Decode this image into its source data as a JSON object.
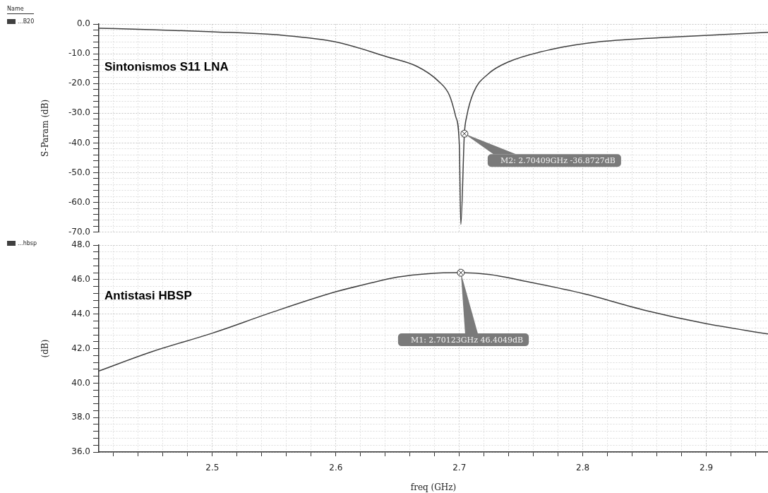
{
  "chart_data": [
    {
      "type": "line",
      "title": "Sintonismos S11 LNA",
      "ylabel": "S-Param (dB)",
      "legend_title": "Name",
      "legend": "left",
      "grid": true,
      "marker": "none",
      "line_style": "solid",
      "tick_labels": "y",
      "series": [
        {
          "name": "...B20",
          "color": "#404040",
          "x": [
            2.408,
            2.45,
            2.5,
            2.557,
            2.601,
            2.641,
            2.666,
            2.683,
            2.692,
            2.697,
            2.7,
            2.7012,
            2.70409,
            2.706,
            2.7115,
            2.723,
            2.74,
            2.775,
            2.815,
            2.872,
            2.95
          ],
          "values": [
            -1.4,
            -1.9,
            -2.6,
            -3.8,
            -6.1,
            -11,
            -14.3,
            -19.2,
            -24,
            -31,
            -40.6,
            -67.4,
            -36.8727,
            -31,
            -23,
            -16.9,
            -12.7,
            -8.5,
            -5.9,
            -4.4,
            -2.8
          ]
        }
      ],
      "annotations": [
        {
          "text": "M2: 2.70409GHz -36.8727dB",
          "x": 2.70409,
          "y": -36.8727
        }
      ],
      "xlim": [
        2.408,
        2.95
      ],
      "ylim": [
        -70,
        0
      ],
      "xticks": [
        {
          "value": 2.42,
          "label": null
        },
        {
          "value": 2.44,
          "label": null
        },
        {
          "value": 2.46,
          "label": null
        },
        {
          "value": 2.48,
          "label": null
        },
        2.5,
        {
          "value": 2.52,
          "label": null
        },
        {
          "value": 2.54,
          "label": null
        },
        {
          "value": 2.56,
          "label": null
        },
        {
          "value": 2.58,
          "label": null
        },
        2.6,
        {
          "value": 2.62,
          "label": null
        },
        {
          "value": 2.64,
          "label": null
        },
        {
          "value": 2.66,
          "label": null
        },
        {
          "value": 2.68,
          "label": null
        },
        2.7,
        {
          "value": 2.72,
          "label": null
        },
        {
          "value": 2.74,
          "label": null
        },
        {
          "value": 2.76,
          "label": null
        },
        {
          "value": 2.78,
          "label": null
        },
        2.8,
        {
          "value": 2.82,
          "label": null
        },
        {
          "value": 2.84,
          "label": null
        },
        {
          "value": 2.86,
          "label": null
        },
        {
          "value": 2.88,
          "label": null
        },
        2.9,
        {
          "value": 2.92,
          "label": null
        },
        {
          "value": 2.94,
          "label": null
        }
      ],
      "yticks": [
        {
          "value": -70,
          "label": "-70.0"
        },
        {
          "value": -68,
          "label": null
        },
        {
          "value": -66,
          "label": null
        },
        {
          "value": -64,
          "label": null
        },
        {
          "value": -62,
          "label": null
        },
        {
          "value": -60,
          "label": "-60.0"
        },
        {
          "value": -58,
          "label": null
        },
        {
          "value": -56,
          "label": null
        },
        {
          "value": -54,
          "label": null
        },
        {
          "value": -52,
          "label": null
        },
        {
          "value": -50,
          "label": "-50.0"
        },
        {
          "value": -48,
          "label": null
        },
        {
          "value": -46,
          "label": null
        },
        {
          "value": -44,
          "label": null
        },
        {
          "value": -42,
          "label": null
        },
        {
          "value": -40,
          "label": "-40.0"
        },
        {
          "value": -38,
          "label": null
        },
        {
          "value": -36,
          "label": null
        },
        {
          "value": -34,
          "label": null
        },
        {
          "value": -32,
          "label": null
        },
        {
          "value": -30,
          "label": "-30.0"
        },
        {
          "value": -28,
          "label": null
        },
        {
          "value": -26,
          "label": null
        },
        {
          "value": -24,
          "label": null
        },
        {
          "value": -22,
          "label": null
        },
        {
          "value": -20,
          "label": "-20.0"
        },
        {
          "value": -18,
          "label": null
        },
        {
          "value": -16,
          "label": null
        },
        {
          "value": -14,
          "label": null
        },
        {
          "value": -12,
          "label": null
        },
        {
          "value": -10,
          "label": "-10.0"
        },
        {
          "value": -8,
          "label": null
        },
        {
          "value": -6,
          "label": null
        },
        {
          "value": -4,
          "label": null
        },
        {
          "value": -2,
          "label": null
        },
        {
          "value": 0,
          "label": "0.0"
        }
      ]
    },
    {
      "type": "line",
      "title": "Antistasi HBSP",
      "xlabel": "freq (GHz)",
      "ylabel": "(dB)",
      "legend": "left",
      "grid": true,
      "marker": "none",
      "line_style": "solid",
      "series": [
        {
          "name": "...hbsp",
          "color": "#404040",
          "x": [
            2.408,
            2.45,
            2.5,
            2.55,
            2.6,
            2.625,
            2.65,
            2.675,
            2.70123,
            2.725,
            2.75,
            2.8,
            2.85,
            2.9,
            2.95
          ],
          "values": [
            40.7,
            41.8,
            42.9,
            44.15,
            45.3,
            45.75,
            46.15,
            46.35,
            46.4049,
            46.3,
            45.96,
            45.2,
            44.23,
            43.45,
            42.85
          ]
        }
      ],
      "annotations": [
        {
          "text": "M1: 2.70123GHz 46.4049dB",
          "x": 2.70123,
          "y": 46.4049
        }
      ],
      "xlim": [
        2.408,
        2.95
      ],
      "ylim": [
        36,
        48
      ],
      "xticks": [
        {
          "value": 2.42,
          "label": null
        },
        {
          "value": 2.44,
          "label": null
        },
        {
          "value": 2.46,
          "label": null
        },
        {
          "value": 2.48,
          "label": null
        },
        2.5,
        {
          "value": 2.52,
          "label": null
        },
        {
          "value": 2.54,
          "label": null
        },
        {
          "value": 2.56,
          "label": null
        },
        {
          "value": 2.58,
          "label": null
        },
        2.6,
        {
          "value": 2.62,
          "label": null
        },
        {
          "value": 2.64,
          "label": null
        },
        {
          "value": 2.66,
          "label": null
        },
        {
          "value": 2.68,
          "label": null
        },
        2.7,
        {
          "value": 2.72,
          "label": null
        },
        {
          "value": 2.74,
          "label": null
        },
        {
          "value": 2.76,
          "label": null
        },
        {
          "value": 2.78,
          "label": null
        },
        2.8,
        {
          "value": 2.82,
          "label": null
        },
        {
          "value": 2.84,
          "label": null
        },
        {
          "value": 2.86,
          "label": null
        },
        {
          "value": 2.88,
          "label": null
        },
        2.9,
        {
          "value": 2.92,
          "label": null
        },
        {
          "value": 2.94,
          "label": null
        }
      ],
      "yticks": [
        {
          "value": 36,
          "label": "36.0"
        },
        {
          "value": 36.4,
          "label": null
        },
        {
          "value": 36.8,
          "label": null
        },
        {
          "value": 37.2,
          "label": null
        },
        {
          "value": 37.6,
          "label": null
        },
        {
          "value": 38,
          "label": "38.0"
        },
        {
          "value": 38.4,
          "label": null
        },
        {
          "value": 38.8,
          "label": null
        },
        {
          "value": 39.2,
          "label": null
        },
        {
          "value": 39.6,
          "label": null
        },
        {
          "value": 40,
          "label": "40.0"
        },
        {
          "value": 40.4,
          "label": null
        },
        {
          "value": 40.8,
          "label": null
        },
        {
          "value": 41.2,
          "label": null
        },
        {
          "value": 41.6,
          "label": null
        },
        {
          "value": 42,
          "label": "42.0"
        },
        {
          "value": 42.4,
          "label": null
        },
        {
          "value": 42.8,
          "label": null
        },
        {
          "value": 43.2,
          "label": null
        },
        {
          "value": 43.6,
          "label": null
        },
        {
          "value": 44,
          "label": "44.0"
        },
        {
          "value": 44.4,
          "label": null
        },
        {
          "value": 44.8,
          "label": null
        },
        {
          "value": 45.2,
          "label": null
        },
        {
          "value": 45.6,
          "label": null
        },
        {
          "value": 46,
          "label": "46.0"
        },
        {
          "value": 46.4,
          "label": null
        },
        {
          "value": 46.8,
          "label": null
        },
        {
          "value": 47.2,
          "label": null
        },
        {
          "value": 47.6,
          "label": null
        },
        {
          "value": 48,
          "label": "48.0"
        }
      ]
    }
  ]
}
